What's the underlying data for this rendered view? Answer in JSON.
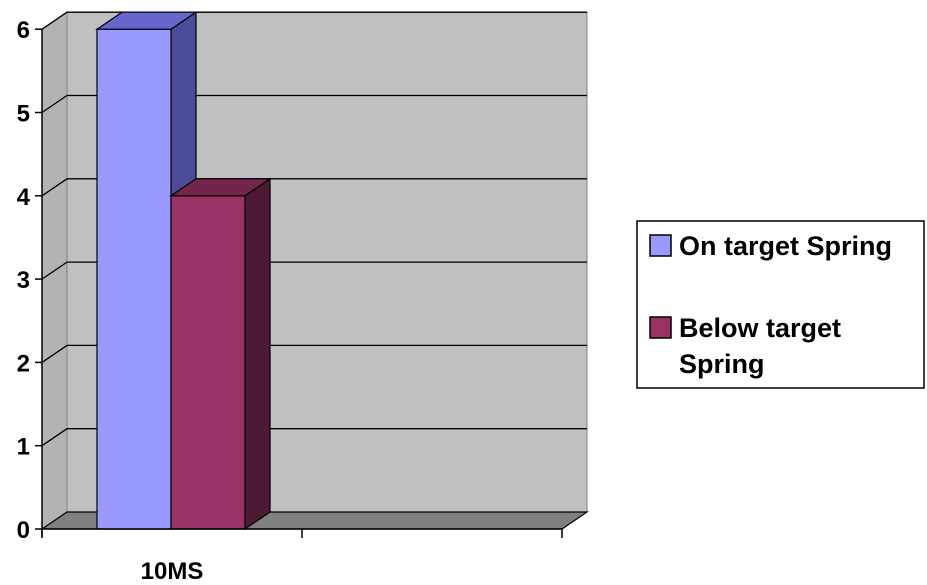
{
  "chart_data": {
    "type": "bar",
    "style": "3d-clustered-column",
    "categories": [
      "10MS"
    ],
    "series": [
      {
        "name": "On target Spring",
        "values": [
          6
        ],
        "color": "#9999ff",
        "side_color": "#4c4c99",
        "top_color": "#6666cc"
      },
      {
        "name": "Below target Spring",
        "values": [
          4
        ],
        "color": "#993366",
        "side_color": "#4d1a33",
        "top_color": "#732649"
      }
    ],
    "legend_lines": [
      [
        "On target Spring"
      ],
      [
        "Below target",
        "Spring"
      ]
    ],
    "ylim": [
      0,
      6
    ],
    "yticks": [
      0,
      1,
      2,
      3,
      4,
      5,
      6
    ],
    "grid": true,
    "legend_position": "right",
    "colors": {
      "wall": "#c0c0c0",
      "floor": "#808080",
      "grid": "#000000"
    }
  }
}
